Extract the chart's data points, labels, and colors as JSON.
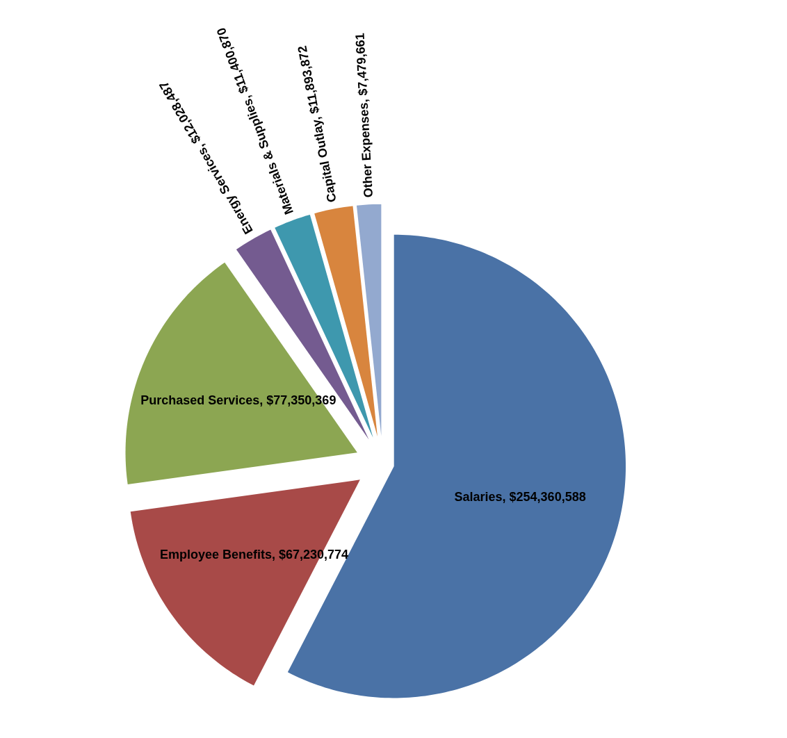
{
  "chart_data": {
    "type": "pie",
    "categories": [
      "Salaries",
      "Employee Benefits",
      "Purchased Services",
      "Energy Services",
      "Materials & Supplies",
      "Capital Outlay",
      "Other Expenses"
    ],
    "values": [
      254360588,
      67230774,
      77350369,
      12028487,
      11400870,
      11893872,
      7479661
    ],
    "value_labels": [
      "$254,360,588",
      "$67,230,774",
      "$77,350,369",
      "$12,028,487",
      "$11,400,870",
      "$11,893,872",
      "$7,479,661"
    ],
    "colors": [
      "#4a72a6",
      "#a84a48",
      "#8ca652",
      "#745b90",
      "#3e98ae",
      "#d8853e",
      "#93a9cf"
    ]
  }
}
